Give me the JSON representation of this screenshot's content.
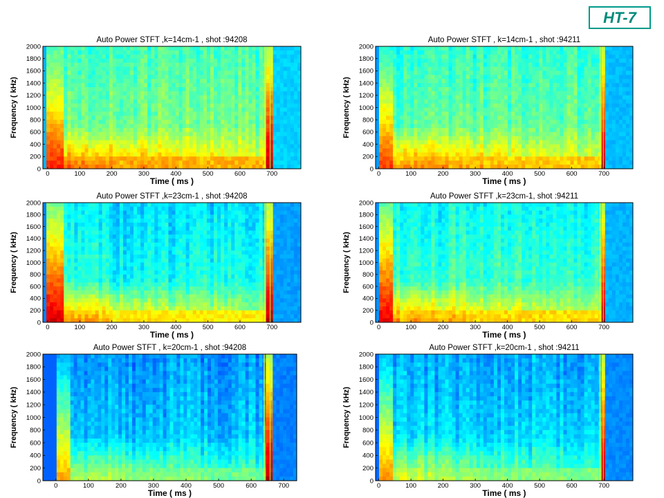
{
  "badge": {
    "label": "HT-7"
  },
  "chart_data": [
    {
      "type": "heatmap",
      "title": "Auto Power STFT  ,k=14cm-1 ,  shot :94208",
      "xlabel": "Time  ( ms )",
      "ylabel": "Frequency  ( kHz)",
      "xlim": [
        -15,
        790
      ],
      "ylim": [
        0,
        2000
      ],
      "xticks": [
        0,
        100,
        200,
        300,
        400,
        500,
        600,
        700
      ],
      "yticks": [
        0,
        200,
        400,
        600,
        800,
        1000,
        1200,
        1400,
        1600,
        1800,
        2000
      ],
      "shot_end_ms": 678,
      "burst_ms": 688,
      "colormap": "jet",
      "level": {
        "background": 0.35,
        "body": 0.52,
        "low_freq": 0.78,
        "start": 0.85,
        "end": 0.95
      }
    },
    {
      "type": "heatmap",
      "title": "Auto Power STFT  ,   k=14cm-1 ,  shot :94211",
      "xlabel": "Time  ( ms )",
      "ylabel": "Frequency  ( kHz)",
      "xlim": [
        -10,
        790
      ],
      "ylim": [
        0,
        2000
      ],
      "xticks": [
        0,
        100,
        200,
        300,
        400,
        500,
        600,
        700
      ],
      "yticks": [
        0,
        200,
        400,
        600,
        800,
        1000,
        1200,
        1400,
        1600,
        1800,
        2000
      ],
      "shot_end_ms": 688,
      "burst_ms": 692,
      "colormap": "jet",
      "level": {
        "background": 0.33,
        "body": 0.5,
        "low_freq": 0.76,
        "start": 0.82,
        "end": 0.95
      }
    },
    {
      "type": "heatmap",
      "title": "Auto Power STFT ,k=23cm-1  ,  shot :94208",
      "xlabel": "Time  ( ms )",
      "ylabel": "Frequency  ( kHz)",
      "xlim": [
        -15,
        790
      ],
      "ylim": [
        0,
        2000
      ],
      "xticks": [
        0,
        100,
        200,
        300,
        400,
        500,
        600,
        700
      ],
      "yticks": [
        0,
        200,
        400,
        600,
        800,
        1000,
        1200,
        1400,
        1600,
        1800,
        2000
      ],
      "shot_end_ms": 678,
      "burst_ms": 688,
      "colormap": "jet",
      "level": {
        "background": 0.3,
        "body": 0.42,
        "low_freq": 0.72,
        "start": 0.92,
        "end": 0.95
      }
    },
    {
      "type": "heatmap",
      "title": "Auto Power STFT  ,k=23cm-1,  shot :94211",
      "xlabel": "Time  ( ms )",
      "ylabel": "Frequency  ( kHz)",
      "xlim": [
        -10,
        790
      ],
      "ylim": [
        0,
        2000
      ],
      "xticks": [
        0,
        100,
        200,
        300,
        400,
        500,
        600,
        700
      ],
      "yticks": [
        0,
        200,
        400,
        600,
        800,
        1000,
        1200,
        1400,
        1600,
        1800,
        2000
      ],
      "shot_end_ms": 688,
      "burst_ms": 692,
      "colormap": "jet",
      "level": {
        "background": 0.32,
        "body": 0.46,
        "low_freq": 0.74,
        "start": 0.9,
        "end": 0.95
      }
    },
    {
      "type": "heatmap",
      "title": "Auto Power STFT , k=20cm-1 ,  shot :94208",
      "xlabel": "Time  ( ms )",
      "ylabel": "Frequency  ( kHz)",
      "xlim": [
        -40,
        740
      ],
      "ylim": [
        0,
        2000
      ],
      "xticks": [
        0,
        100,
        200,
        300,
        400,
        500,
        600,
        700
      ],
      "yticks": [
        0,
        200,
        400,
        600,
        800,
        1000,
        1200,
        1400,
        1600,
        1800,
        2000
      ],
      "shot_end_ms": 640,
      "burst_ms": 652,
      "colormap": "jet",
      "level": {
        "background": 0.27,
        "body": 0.35,
        "low_freq": 0.56,
        "start": 0.72,
        "end": 0.95
      }
    },
    {
      "type": "heatmap",
      "title": "Auto Power STFT ,k=20cm-1 ,  shot :94211",
      "xlabel": "Time  ( ms )",
      "ylabel": "Frequency  ( kHz)",
      "xlim": [
        -10,
        790
      ],
      "ylim": [
        0,
        2000
      ],
      "xticks": [
        0,
        100,
        200,
        300,
        400,
        500,
        600,
        700
      ],
      "yticks": [
        0,
        200,
        400,
        600,
        800,
        1000,
        1200,
        1400,
        1600,
        1800,
        2000
      ],
      "shot_end_ms": 688,
      "burst_ms": 692,
      "colormap": "jet",
      "level": {
        "background": 0.28,
        "body": 0.37,
        "low_freq": 0.58,
        "start": 0.74,
        "end": 0.95
      }
    }
  ]
}
